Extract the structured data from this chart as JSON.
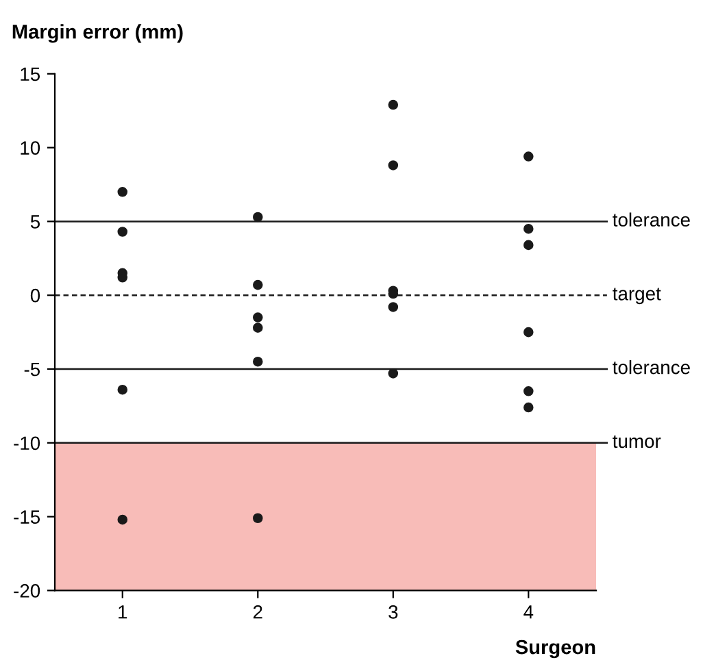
{
  "chart_data": {
    "type": "scatter",
    "ylabel": "Margin error (mm)",
    "xlabel": "Surgeon",
    "categories": [
      "1",
      "2",
      "3",
      "4"
    ],
    "series": [
      {
        "color": "#1a1a1a",
        "x": [
          "1",
          "1",
          "1",
          "1",
          "1",
          "1"
        ],
        "values": [
          7.0,
          4.3,
          1.5,
          1.2,
          -6.4,
          -15.2
        ]
      },
      {
        "color": "#1a1a1a",
        "x": [
          "2",
          "2",
          "2",
          "2",
          "2",
          "2"
        ],
        "values": [
          5.3,
          0.7,
          -1.5,
          -2.2,
          -4.5,
          -15.1
        ]
      },
      {
        "color": "#1a1a1a",
        "x": [
          "3",
          "3",
          "3",
          "3",
          "3",
          "3"
        ],
        "values": [
          12.9,
          8.8,
          0.3,
          0.1,
          -0.8,
          -5.3
        ]
      },
      {
        "color": "#1a1a1a",
        "x": [
          "4",
          "4",
          "4",
          "4",
          "4",
          "4"
        ],
        "values": [
          9.4,
          4.5,
          3.4,
          -2.5,
          -6.5,
          -7.6
        ]
      }
    ],
    "marker": "circle",
    "ylim": [
      -20,
      15
    ],
    "yticks": [
      -20,
      -15,
      -10,
      -5,
      0,
      5,
      10,
      15
    ],
    "ref_lines": [
      {
        "axis": "y",
        "value": 5,
        "label": "tolerance",
        "color": "#1a1a1a",
        "line_style": "solid"
      },
      {
        "axis": "y",
        "value": 0,
        "label": "target",
        "color": "#1a1a1a",
        "line_style": "dashed"
      },
      {
        "axis": "y",
        "value": -5,
        "label": "tolerance",
        "color": "#1a1a1a",
        "line_style": "solid"
      },
      {
        "axis": "y",
        "value": -10,
        "label": "tumor",
        "color": "#1a1a1a",
        "line_style": "solid"
      }
    ],
    "bands": [
      {
        "axis": "y",
        "from": -20,
        "to": -10,
        "color": "#f8bcb8"
      }
    ],
    "grid": false,
    "legend": false
  }
}
